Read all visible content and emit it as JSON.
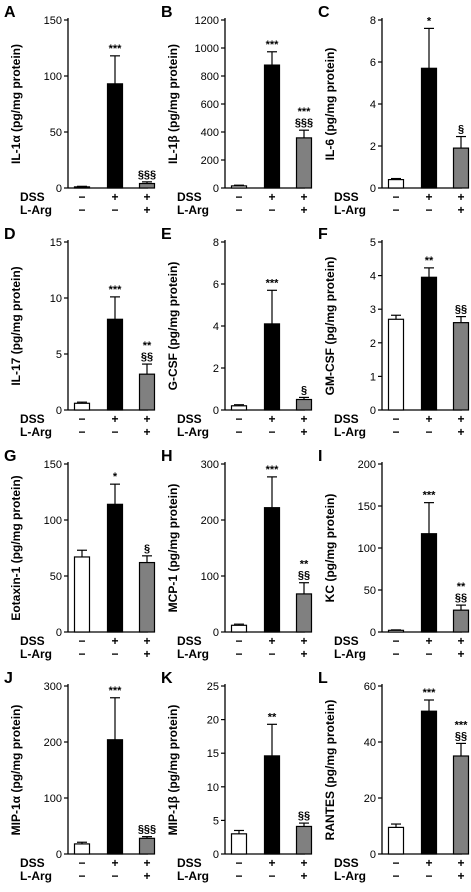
{
  "figure": {
    "condition_rows": [
      {
        "label": "DSS",
        "marks": [
          "−",
          "+",
          "+"
        ]
      },
      {
        "label": "L-Arg",
        "marks": [
          "−",
          "−",
          "+"
        ]
      }
    ],
    "bar_colors": [
      "#ffffff",
      "#000000",
      "#808080"
    ]
  },
  "chart_data": [
    {
      "type": "bar",
      "panel": "A",
      "ylabel": "IL-1α (pg/mg protein)",
      "ylim": [
        0,
        150
      ],
      "yticks": [
        0,
        50,
        100,
        150
      ],
      "values": [
        1,
        93,
        4
      ],
      "errors": [
        0.5,
        25,
        1.5
      ],
      "annotations": [
        "",
        "***",
        "§§§"
      ]
    },
    {
      "type": "bar",
      "panel": "B",
      "ylabel": "IL-1β (pg/mg protein)",
      "ylim": [
        0,
        1200
      ],
      "yticks": [
        0,
        200,
        400,
        600,
        800,
        1000,
        1200
      ],
      "values": [
        15,
        878,
        358
      ],
      "errors": [
        5,
        95,
        55
      ],
      "annotations": [
        "",
        "***",
        "***\n§§§"
      ]
    },
    {
      "type": "bar",
      "panel": "C",
      "ylabel": "IL-6 (pg/mg protein)",
      "ylim": [
        0,
        8
      ],
      "yticks": [
        0,
        2,
        4,
        6,
        8
      ],
      "values": [
        0.4,
        5.7,
        1.9
      ],
      "errors": [
        0.05,
        1.9,
        0.55
      ],
      "annotations": [
        "",
        "*",
        "§"
      ]
    },
    {
      "type": "bar",
      "panel": "D",
      "ylabel": "IL-17 (pg/mg protein)",
      "ylim": [
        0,
        15
      ],
      "yticks": [
        0,
        5,
        10,
        15
      ],
      "values": [
        0.6,
        8.1,
        3.2
      ],
      "errors": [
        0.1,
        2.0,
        0.9
      ],
      "annotations": [
        "",
        "***",
        "**\n§§"
      ]
    },
    {
      "type": "bar",
      "panel": "E",
      "ylabel": "G-CSF (pg/mg protein)",
      "ylim": [
        0,
        8
      ],
      "yticks": [
        0,
        2,
        4,
        6,
        8
      ],
      "values": [
        0.2,
        4.1,
        0.5
      ],
      "errors": [
        0.05,
        1.6,
        0.1
      ],
      "annotations": [
        "",
        "***",
        "§"
      ]
    },
    {
      "type": "bar",
      "panel": "F",
      "ylabel": "GM-CSF (pg/mg protein)",
      "ylim": [
        0,
        5
      ],
      "yticks": [
        0,
        1,
        2,
        3,
        4,
        5
      ],
      "values": [
        2.7,
        3.95,
        2.6
      ],
      "errors": [
        0.12,
        0.28,
        0.18
      ],
      "annotations": [
        "",
        "**",
        "§§"
      ]
    },
    {
      "type": "bar",
      "panel": "G",
      "ylabel": "Eotaxin-1 (pg/mg protein)",
      "ylim": [
        0,
        150
      ],
      "yticks": [
        0,
        50,
        100,
        150
      ],
      "values": [
        67,
        114,
        62
      ],
      "errors": [
        6,
        18,
        6
      ],
      "annotations": [
        "",
        "*",
        "§"
      ]
    },
    {
      "type": "bar",
      "panel": "H",
      "ylabel": "MCP-1 (pg/mg protein)",
      "ylim": [
        0,
        300
      ],
      "yticks": [
        0,
        100,
        200,
        300
      ],
      "values": [
        12,
        222,
        68
      ],
      "errors": [
        2,
        55,
        20
      ],
      "annotations": [
        "",
        "***",
        "**\n§§"
      ]
    },
    {
      "type": "bar",
      "panel": "I",
      "ylabel": "KC (pg/mg protein)",
      "ylim": [
        0,
        200
      ],
      "yticks": [
        0,
        50,
        100,
        150,
        200
      ],
      "values": [
        2,
        117,
        26
      ],
      "errors": [
        0.5,
        37,
        6
      ],
      "annotations": [
        "",
        "***",
        "**\n§§"
      ]
    },
    {
      "type": "bar",
      "panel": "J",
      "ylabel": "MIP-1α (pg/mg protein)",
      "ylim": [
        0,
        300
      ],
      "yticks": [
        0,
        100,
        200,
        300
      ],
      "values": [
        18,
        204,
        28
      ],
      "errors": [
        3,
        75,
        3
      ],
      "annotations": [
        "",
        "***",
        "§§§"
      ]
    },
    {
      "type": "bar",
      "panel": "K",
      "ylabel": "MIP-1β (pg/mg protein)",
      "ylim": [
        0,
        25
      ],
      "yticks": [
        0,
        5,
        10,
        15,
        20,
        25
      ],
      "values": [
        3,
        14.6,
        4.1
      ],
      "errors": [
        0.5,
        4.7,
        0.5
      ],
      "annotations": [
        "",
        "**",
        "§§"
      ]
    },
    {
      "type": "bar",
      "panel": "L",
      "ylabel": "RANTES (pg/mg protein)",
      "ylim": [
        0,
        60
      ],
      "yticks": [
        0,
        20,
        40,
        60
      ],
      "values": [
        9.5,
        51,
        35
      ],
      "errors": [
        1.2,
        4,
        4.5
      ],
      "annotations": [
        "",
        "***",
        "***\n§§"
      ]
    }
  ]
}
